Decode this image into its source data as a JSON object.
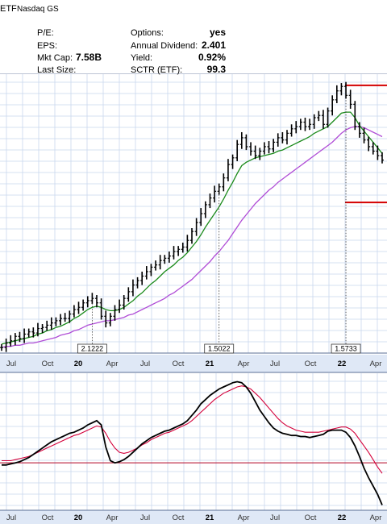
{
  "header": {
    "title_fragment": "ETF",
    "exchange": "Nasdaq GS",
    "left_fields": [
      {
        "label": "P/E:",
        "value": ""
      },
      {
        "label": "EPS:",
        "value": ""
      },
      {
        "label": "Mkt Cap:",
        "value": "7.58B"
      },
      {
        "label": "Last Size:",
        "value": ""
      }
    ],
    "right_fields": [
      {
        "label": "Options:",
        "value": "yes"
      },
      {
        "label": "Annual Dividend:",
        "value": "2.401"
      },
      {
        "label": "Yield:",
        "value": "0.92%"
      },
      {
        "label": "SCTR (ETF):",
        "value": "99.3"
      }
    ]
  },
  "colors": {
    "price_bar": "#000000",
    "ma_short": "#1a8a1a",
    "ma_long": "#b04dd6",
    "resistance": "#d40000",
    "kst_line": "#000000",
    "kst_signal": "#d4003a",
    "zero_line": "#b00020",
    "grid": "#c9d7ee",
    "axis_band": "#dfe8f6"
  },
  "chart_data": [
    {
      "type": "line",
      "name_hint": "price",
      "x_tick_labels": [
        "Jul",
        "Oct",
        "20",
        "Apr",
        "Jul",
        "Oct",
        "21",
        "Apr",
        "Jul",
        "Oct",
        "22",
        "Apr"
      ],
      "annotations": [
        {
          "text": "2.1222",
          "x": 20
        },
        {
          "text": "1.5022",
          "x": 48
        },
        {
          "text": "1.5733",
          "x": 76
        }
      ],
      "x": [
        0,
        1,
        2,
        3,
        4,
        5,
        6,
        7,
        8,
        9,
        10,
        11,
        12,
        13,
        14,
        15,
        16,
        17,
        18,
        19,
        20,
        21,
        22,
        23,
        24,
        25,
        26,
        27,
        28,
        29,
        30,
        31,
        32,
        33,
        34,
        35,
        36,
        37,
        38,
        39,
        40,
        41,
        42,
        43,
        44,
        45,
        46,
        47,
        48,
        49,
        50,
        51,
        52,
        53,
        54,
        55,
        56,
        57,
        58,
        59,
        60,
        61,
        62,
        63,
        64,
        65,
        66,
        67,
        68,
        69,
        70,
        71,
        72,
        73,
        74,
        75,
        76,
        77,
        78,
        79,
        80,
        81,
        82,
        83,
        84
      ],
      "close": [
        100,
        104,
        106,
        110,
        108,
        112,
        114,
        113,
        117,
        118,
        120,
        122,
        124,
        126,
        126,
        130,
        134,
        136,
        140,
        142,
        144,
        140,
        128,
        122,
        128,
        134,
        138,
        144,
        150,
        156,
        160,
        164,
        168,
        172,
        174,
        178,
        180,
        182,
        186,
        188,
        190,
        196,
        204,
        212,
        220,
        228,
        234,
        240,
        244,
        252,
        264,
        270,
        282,
        288,
        280,
        276,
        272,
        276,
        280,
        278,
        284,
        288,
        286,
        292,
        296,
        298,
        302,
        298,
        300,
        306,
        308,
        300,
        312,
        322,
        330,
        334,
        326,
        318,
        298,
        292,
        286,
        280,
        276,
        272,
        268
      ],
      "ma_short": [
        103,
        104,
        105,
        106,
        107,
        108,
        109,
        110,
        112,
        113,
        115,
        116,
        118,
        119,
        121,
        123,
        126,
        128,
        131,
        134,
        136,
        137,
        136,
        134,
        133,
        133,
        134,
        136,
        139,
        142,
        146,
        149,
        153,
        157,
        160,
        164,
        168,
        171,
        174,
        178,
        181,
        185,
        190,
        195,
        201,
        208,
        214,
        220,
        226,
        233,
        241,
        248,
        256,
        263,
        266,
        268,
        270,
        271,
        272,
        273,
        274,
        276,
        277,
        279,
        281,
        283,
        285,
        287,
        289,
        292,
        294,
        296,
        298,
        302,
        306,
        310,
        311,
        311,
        306,
        299,
        294,
        289,
        284,
        279,
        274
      ],
      "ma_long": [
        100,
        101,
        101,
        102,
        102,
        103,
        104,
        104,
        105,
        106,
        107,
        108,
        109,
        111,
        112,
        113,
        115,
        116,
        118,
        120,
        121,
        122,
        123,
        124,
        124,
        125,
        126,
        127,
        129,
        130,
        132,
        134,
        136,
        138,
        140,
        142,
        144,
        147,
        149,
        152,
        155,
        158,
        161,
        165,
        169,
        173,
        177,
        182,
        186,
        191,
        196,
        202,
        208,
        214,
        219,
        224,
        229,
        233,
        237,
        241,
        244,
        248,
        251,
        254,
        257,
        260,
        263,
        266,
        269,
        272,
        275,
        278,
        281,
        284,
        288,
        292,
        295,
        297,
        298,
        298,
        297,
        295,
        293,
        291,
        289
      ],
      "ylim": [
        95,
        345
      ],
      "resistance": {
        "value": 335
      },
      "support": {
        "value": 230
      }
    },
    {
      "type": "line",
      "name_hint": "momentum",
      "x_tick_labels": [
        "Jul",
        "Oct",
        "20",
        "Apr",
        "Jul",
        "Oct",
        "21",
        "Apr",
        "Jul",
        "Oct",
        "22",
        "Apr"
      ],
      "x": [
        0,
        1,
        2,
        3,
        4,
        5,
        6,
        7,
        8,
        9,
        10,
        11,
        12,
        13,
        14,
        15,
        16,
        17,
        18,
        19,
        20,
        21,
        22,
        23,
        24,
        25,
        26,
        27,
        28,
        29,
        30,
        31,
        32,
        33,
        34,
        35,
        36,
        37,
        38,
        39,
        40,
        41,
        42,
        43,
        44,
        45,
        46,
        47,
        48,
        49,
        50,
        51,
        52,
        53,
        54,
        55,
        56,
        57,
        58,
        59,
        60,
        61,
        62,
        63,
        64,
        65,
        66,
        67,
        68,
        69,
        70,
        71,
        72,
        73,
        74,
        75,
        76,
        77,
        78,
        79,
        80,
        81,
        82,
        83,
        84
      ],
      "line": [
        -2,
        -2,
        -1,
        0,
        1,
        3,
        5,
        8,
        11,
        14,
        17,
        20,
        22,
        24,
        26,
        28,
        29,
        31,
        33,
        36,
        38,
        40,
        36,
        15,
        2,
        0,
        1,
        3,
        6,
        10,
        14,
        18,
        21,
        24,
        26,
        28,
        30,
        31,
        33,
        35,
        37,
        40,
        45,
        50,
        56,
        60,
        64,
        67,
        70,
        72,
        74,
        76,
        77,
        76,
        72,
        66,
        58,
        50,
        44,
        38,
        33,
        30,
        28,
        27,
        26,
        26,
        25,
        25,
        24,
        25,
        26,
        27,
        30,
        31,
        31,
        31,
        29,
        24,
        16,
        6,
        -5,
        -14,
        -22,
        -30,
        -40
      ],
      "signal": [
        2,
        2,
        2,
        3,
        4,
        5,
        6,
        8,
        10,
        12,
        14,
        16,
        18,
        20,
        22,
        24,
        26,
        27,
        29,
        31,
        33,
        35,
        34,
        28,
        20,
        14,
        10,
        9,
        10,
        12,
        14,
        17,
        19,
        22,
        24,
        26,
        28,
        29,
        31,
        33,
        35,
        37,
        40,
        44,
        48,
        52,
        56,
        60,
        63,
        66,
        68,
        70,
        72,
        73,
        72,
        70,
        66,
        62,
        57,
        52,
        47,
        42,
        38,
        35,
        33,
        31,
        30,
        29,
        29,
        29,
        29,
        30,
        31,
        32,
        33,
        34,
        34,
        32,
        28,
        22,
        16,
        10,
        3,
        -4,
        -10
      ],
      "zero_line": 0,
      "ylim": [
        -45,
        85
      ]
    }
  ]
}
